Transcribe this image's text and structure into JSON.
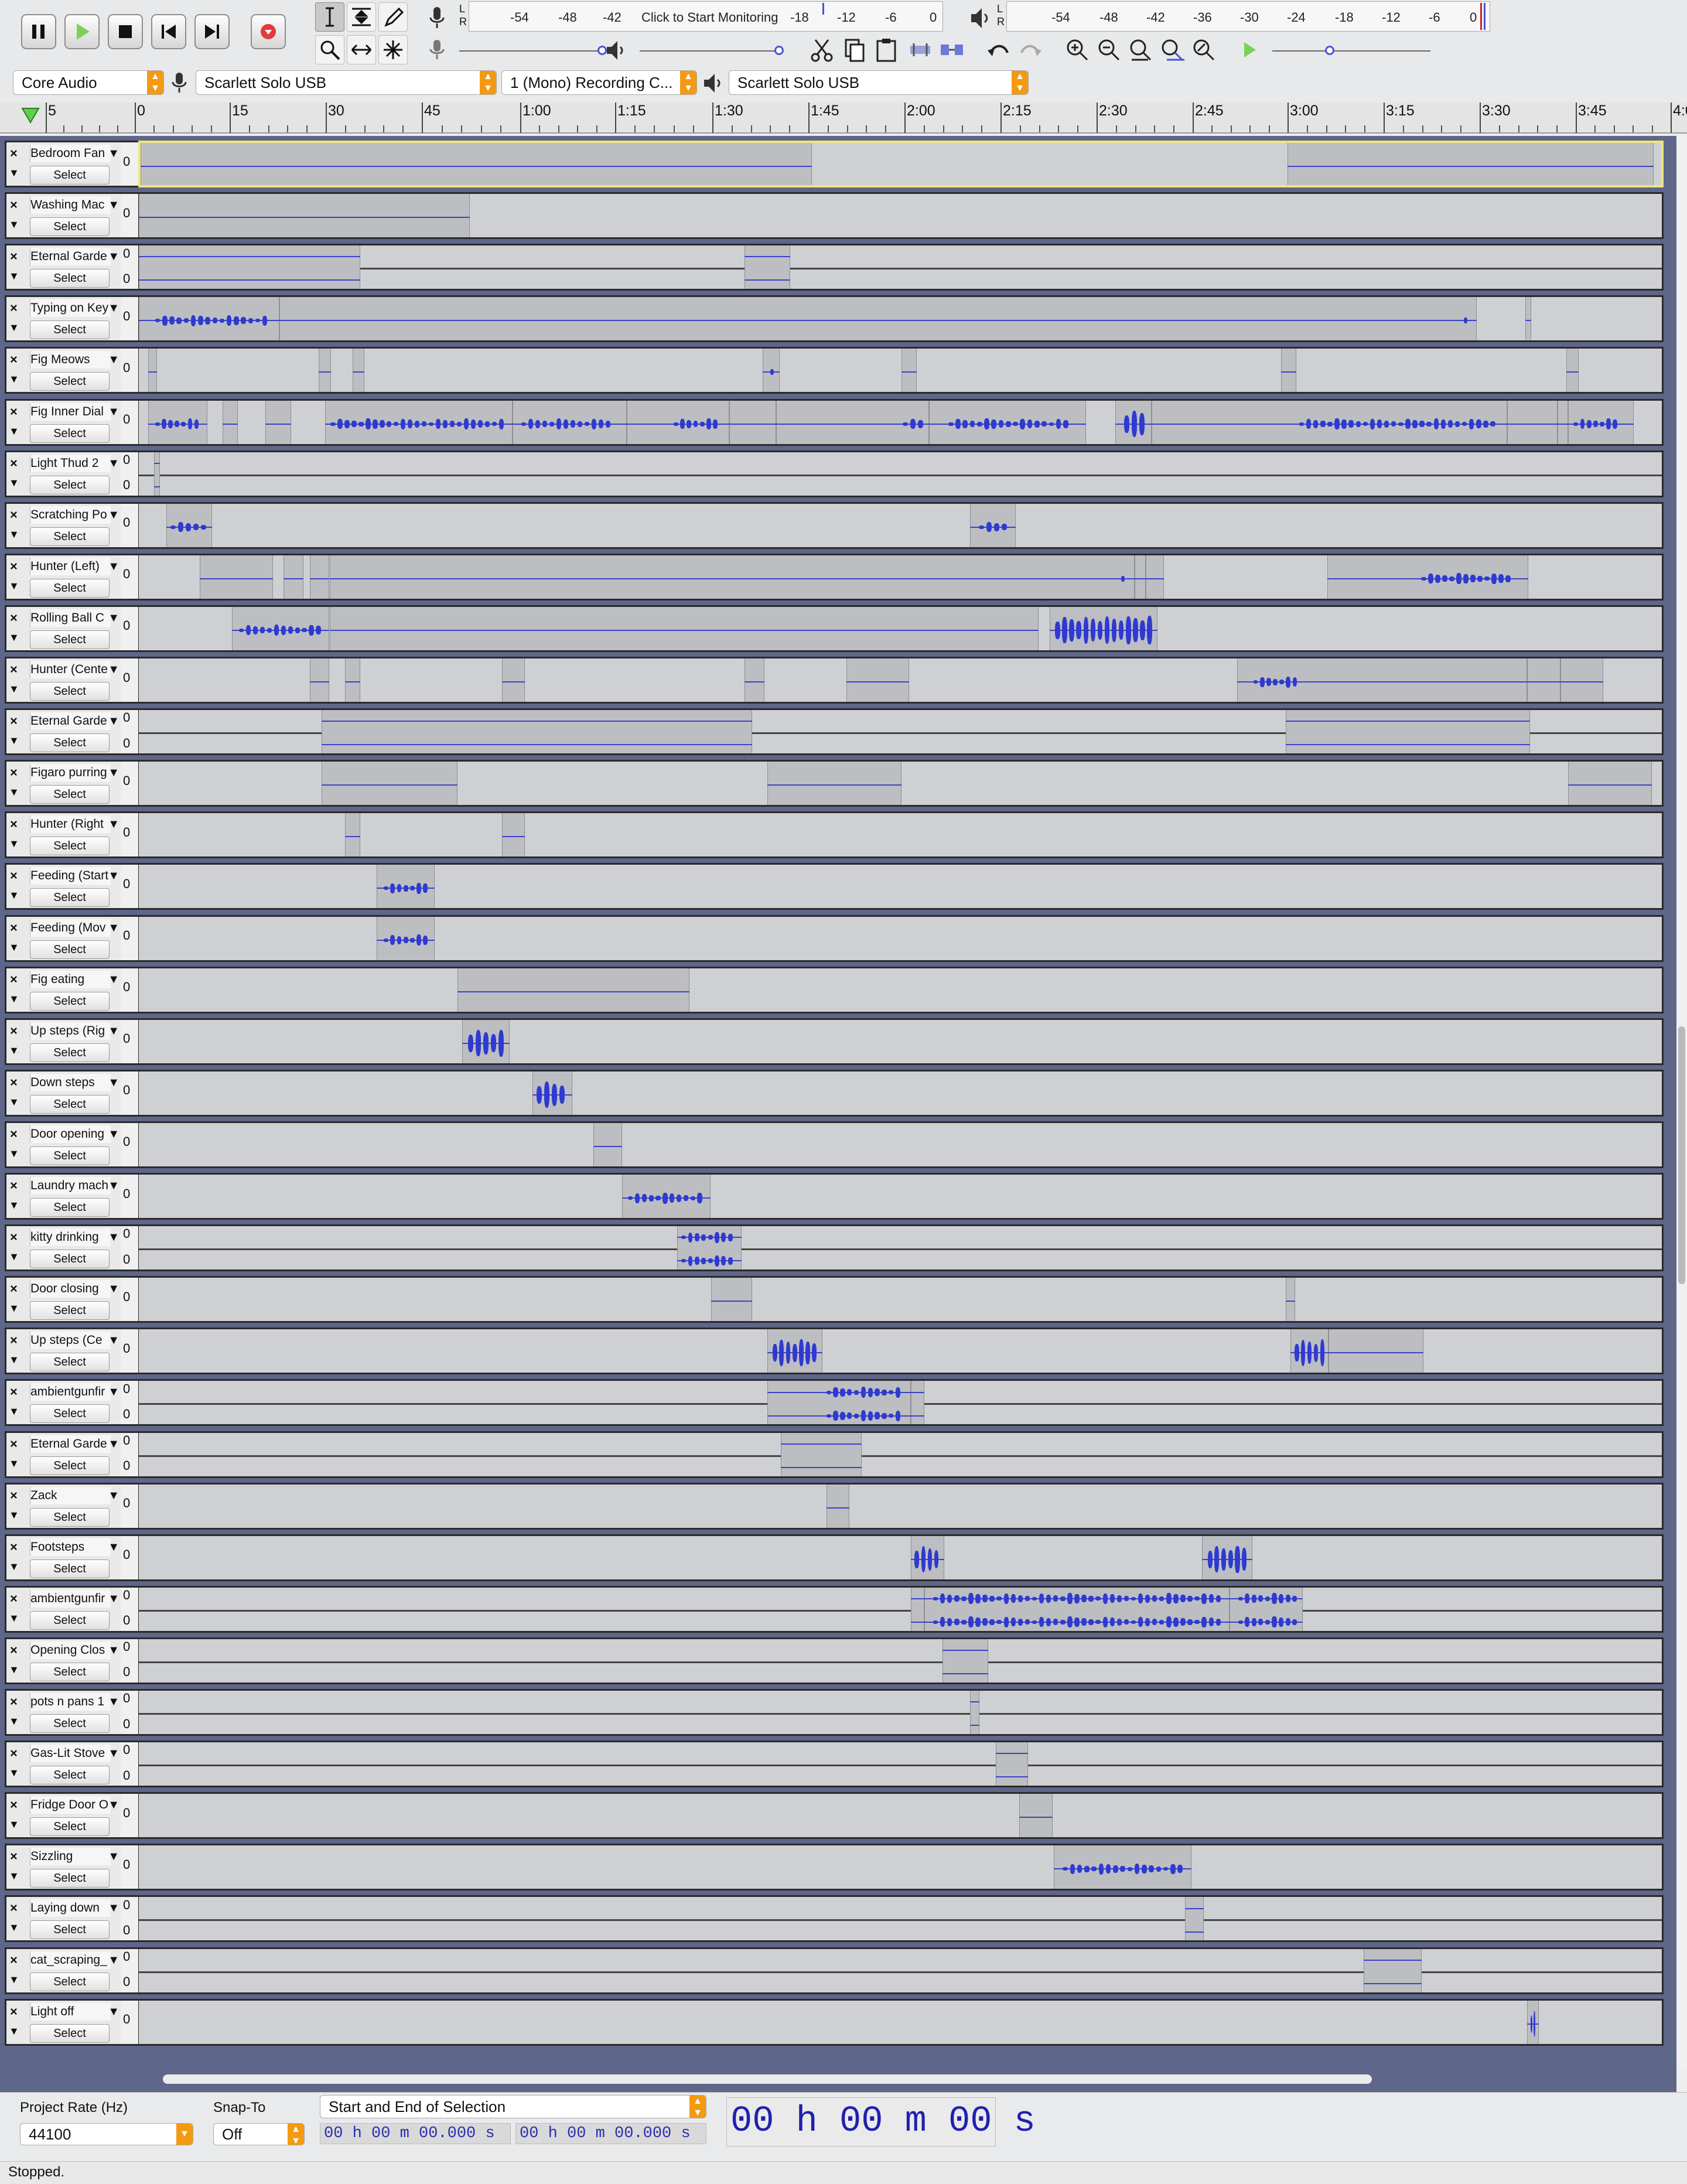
{
  "toolbar": {
    "rec_meter_ticks": [
      "-54",
      "-48",
      "-42",
      "-18",
      "-12",
      "-6",
      "0"
    ],
    "rec_monitor_text": "Click to Start Monitoring",
    "play_meter_ticks": [
      "-54",
      "-48",
      "-42",
      "-36",
      "-30",
      "-24",
      "-18",
      "-12",
      "-6",
      "0"
    ],
    "host": "Core Audio",
    "rec_device": "Scarlett Solo USB",
    "rec_channels": "1 (Mono) Recording C...",
    "play_device": "Scarlett Solo USB",
    "lr": "L R"
  },
  "timeline": {
    "ticks": [
      "5",
      "0",
      "15",
      "30",
      "45",
      "1:00",
      "1:15",
      "1:30",
      "1:45",
      "2:00",
      "2:15",
      "2:30",
      "2:45",
      "3:00",
      "3:15",
      "3:30",
      "3:45",
      "4:00"
    ]
  },
  "tracks": [
    {
      "name": "Bedroom Fan",
      "stereo": false,
      "selected": true,
      "clips": [
        [
          0,
          0.44,
          [
            [
              0.01,
              0.43,
              "line"
            ]
          ]
        ],
        [
          0.752,
          0.992,
          [
            [
              0.77,
              0.98,
              "line"
            ]
          ]
        ]
      ]
    },
    {
      "name": "Washing Mac",
      "stereo": false,
      "clips": [
        [
          0,
          0.217,
          [
            [
              0.01,
              0.21,
              "line"
            ]
          ]
        ]
      ]
    },
    {
      "name": "Eternal Garde",
      "stereo": true,
      "clips": [
        [
          0,
          0.145,
          []
        ],
        [
          0.397,
          0.427,
          []
        ]
      ]
    },
    {
      "name": "Typing on Key",
      "stereo": false,
      "clips": [
        [
          0,
          0.092,
          [
            [
              0.01,
              0.085,
              "dense"
            ]
          ]
        ],
        [
          0.092,
          0.877,
          [
            [
              0.88,
              0.86,
              "dot"
            ]
          ]
        ],
        [
          0.909,
          0.913,
          []
        ]
      ]
    },
    {
      "name": "Fig Meows",
      "stereo": false,
      "clips": [
        [
          0.006,
          0.012,
          []
        ],
        [
          0.118,
          0.126,
          []
        ],
        [
          0.14,
          0.148,
          []
        ],
        [
          0.409,
          0.42,
          [
            [
              0.412,
              0.418,
              "dot"
            ]
          ]
        ],
        [
          0.5,
          0.51,
          []
        ],
        [
          0.749,
          0.759,
          []
        ],
        [
          0.936,
          0.944,
          []
        ]
      ]
    },
    {
      "name": "Fig Inner Dial",
      "stereo": false,
      "clips": [
        [
          0.006,
          0.045,
          [
            [
              0.01,
              0.04,
              "dense"
            ]
          ]
        ],
        [
          0.055,
          0.065,
          []
        ],
        [
          0.083,
          0.1,
          []
        ],
        [
          0.122,
          0.245,
          [
            [
              0.125,
              0.24,
              "dense"
            ]
          ]
        ],
        [
          0.245,
          0.32,
          [
            [
              0.25,
              0.31,
              "dense"
            ]
          ]
        ],
        [
          0.32,
          0.387,
          [
            [
              0.35,
              0.38,
              "dense"
            ]
          ]
        ],
        [
          0.387,
          0.418,
          []
        ],
        [
          0.418,
          0.518,
          [
            [
              0.5,
              0.515,
              "dense"
            ]
          ]
        ],
        [
          0.518,
          0.621,
          [
            [
              0.53,
              0.61,
              "dense"
            ]
          ]
        ],
        [
          0.64,
          0.664,
          [
            [
              0.645,
              0.66,
              "big"
            ]
          ]
        ],
        [
          0.664,
          0.897,
          [
            [
              0.76,
              0.89,
              "dense"
            ]
          ]
        ],
        [
          0.897,
          0.93,
          []
        ],
        [
          0.93,
          0.937,
          []
        ],
        [
          0.937,
          0.98,
          [
            [
              0.94,
              0.97,
              "dense"
            ]
          ]
        ]
      ]
    },
    {
      "name": "Light Thud 2",
      "stereo": true,
      "clips": [
        [
          0.01,
          0.014,
          []
        ]
      ]
    },
    {
      "name": "Scratching Po",
      "stereo": false,
      "clips": [
        [
          0.018,
          0.048,
          [
            [
              0.02,
              0.045,
              "dense"
            ]
          ]
        ],
        [
          0.545,
          0.575,
          [
            [
              0.55,
              0.57,
              "dense"
            ]
          ]
        ]
      ]
    },
    {
      "name": "Hunter (Left)",
      "stereo": false,
      "clips": [
        [
          0.04,
          0.088,
          [
            [
              0.045,
              0.085,
              "line"
            ]
          ]
        ],
        [
          0.095,
          0.108,
          []
        ],
        [
          0.112,
          0.125,
          []
        ],
        [
          0.125,
          0.653,
          [
            [
              0.64,
              0.65,
              "dot"
            ]
          ]
        ],
        [
          0.653,
          0.66,
          []
        ],
        [
          0.66,
          0.672,
          []
        ],
        [
          0.779,
          0.911,
          [
            [
              0.84,
              0.9,
              "dense"
            ]
          ]
        ]
      ]
    },
    {
      "name": "Rolling Ball C",
      "stereo": false,
      "clips": [
        [
          0.061,
          0.125,
          [
            [
              0.065,
              0.12,
              "dense"
            ]
          ]
        ],
        [
          0.125,
          0.59,
          []
        ],
        [
          0.597,
          0.668,
          [
            [
              0.6,
              0.665,
              "big"
            ]
          ]
        ]
      ]
    },
    {
      "name": "Hunter (Cente",
      "stereo": false,
      "clips": [
        [
          0.112,
          0.125,
          []
        ],
        [
          0.135,
          0.145,
          []
        ],
        [
          0.238,
          0.253,
          []
        ],
        [
          0.397,
          0.41,
          []
        ],
        [
          0.464,
          0.505,
          [
            [
              0.47,
              0.5,
              "line"
            ]
          ]
        ],
        [
          0.72,
          0.91,
          [
            [
              0.73,
              0.76,
              "dense"
            ]
          ]
        ],
        [
          0.91,
          0.932,
          []
        ],
        [
          0.932,
          0.96,
          []
        ]
      ]
    },
    {
      "name": "Eternal Garde",
      "stereo": true,
      "clips": [
        [
          0.12,
          0.402,
          []
        ],
        [
          0.752,
          0.912,
          []
        ]
      ]
    },
    {
      "name": "Figaro purring",
      "stereo": false,
      "clips": [
        [
          0.12,
          0.209,
          [
            [
              0.125,
              0.2,
              "line"
            ]
          ]
        ],
        [
          0.412,
          0.5,
          [
            [
              0.415,
              0.495,
              "line"
            ]
          ]
        ],
        [
          0.937,
          0.992,
          [
            [
              0.94,
              0.985,
              "line"
            ]
          ]
        ]
      ]
    },
    {
      "name": "Hunter (Right",
      "stereo": false,
      "clips": [
        [
          0.135,
          0.145,
          []
        ],
        [
          0.238,
          0.253,
          []
        ]
      ]
    },
    {
      "name": "Feeding (Start",
      "stereo": false,
      "clips": [
        [
          0.156,
          0.194,
          [
            [
              0.16,
              0.19,
              "dense"
            ]
          ]
        ]
      ]
    },
    {
      "name": "Feeding (Mov",
      "stereo": false,
      "clips": [
        [
          0.156,
          0.194,
          [
            [
              0.16,
              0.19,
              "dense"
            ]
          ]
        ]
      ]
    },
    {
      "name": "Fig eating",
      "stereo": false,
      "clips": [
        [
          0.209,
          0.361,
          [
            [
              0.21,
              0.355,
              "line"
            ]
          ]
        ]
      ]
    },
    {
      "name": "Up steps (Rig",
      "stereo": false,
      "clips": [
        [
          0.212,
          0.243,
          [
            [
              0.215,
              0.24,
              "big"
            ]
          ]
        ]
      ]
    },
    {
      "name": "Down steps",
      "stereo": false,
      "clips": [
        [
          0.258,
          0.284,
          [
            [
              0.26,
              0.28,
              "big"
            ]
          ]
        ]
      ]
    },
    {
      "name": "Door opening",
      "stereo": false,
      "clips": [
        [
          0.298,
          0.317,
          []
        ]
      ]
    },
    {
      "name": "Laundry mach",
      "stereo": false,
      "clips": [
        [
          0.317,
          0.375,
          [
            [
              0.32,
              0.37,
              "dense"
            ]
          ]
        ]
      ]
    },
    {
      "name": "kitty drinking",
      "stereo": true,
      "clips": [
        [
          0.353,
          0.395,
          [
            [
              0.355,
              0.39,
              "dense"
            ]
          ]
        ]
      ]
    },
    {
      "name": "Door closing",
      "stereo": false,
      "clips": [
        [
          0.375,
          0.402,
          []
        ],
        [
          0.752,
          0.758,
          []
        ]
      ]
    },
    {
      "name": "Up steps (Ce",
      "stereo": false,
      "clips": [
        [
          0.412,
          0.448,
          [
            [
              0.415,
              0.445,
              "big"
            ]
          ]
        ],
        [
          0.755,
          0.78,
          [
            [
              0.757,
              0.778,
              "big"
            ]
          ]
        ],
        [
          0.78,
          0.842,
          []
        ]
      ]
    },
    {
      "name": "ambientgunfir",
      "stereo": true,
      "clips": [
        [
          0.412,
          0.506,
          [
            [
              0.45,
              0.5,
              "dense"
            ]
          ]
        ],
        [
          0.506,
          0.515,
          []
        ]
      ]
    },
    {
      "name": "Eternal Garde",
      "stereo": true,
      "clips": [
        [
          0.421,
          0.474,
          []
        ]
      ]
    },
    {
      "name": "Zack",
      "stereo": false,
      "clips": [
        [
          0.451,
          0.466,
          []
        ]
      ]
    },
    {
      "name": "Footsteps",
      "stereo": false,
      "clips": [
        [
          0.506,
          0.528,
          [
            [
              0.508,
              0.525,
              "big"
            ]
          ]
        ],
        [
          0.697,
          0.73,
          [
            [
              0.7,
              0.727,
              "big"
            ]
          ]
        ]
      ]
    },
    {
      "name": "ambientgunfir",
      "stereo": true,
      "clips": [
        [
          0.506,
          0.515,
          []
        ],
        [
          0.515,
          0.715,
          [
            [
              0.52,
              0.71,
              "dense"
            ]
          ]
        ],
        [
          0.715,
          0.763,
          [
            [
              0.72,
              0.76,
              "dense"
            ]
          ]
        ]
      ]
    },
    {
      "name": "Opening Clos",
      "stereo": true,
      "clips": [
        [
          0.527,
          0.557,
          []
        ]
      ]
    },
    {
      "name": "pots n pans 1",
      "stereo": true,
      "clips": [
        [
          0.545,
          0.551,
          []
        ]
      ]
    },
    {
      "name": "Gas-Lit Stove",
      "stereo": true,
      "clips": [
        [
          0.562,
          0.583,
          []
        ]
      ]
    },
    {
      "name": "Fridge Door O",
      "stereo": false,
      "clips": [
        [
          0.577,
          0.599,
          []
        ]
      ]
    },
    {
      "name": "Sizzling",
      "stereo": false,
      "clips": [
        [
          0.6,
          0.69,
          [
            [
              0.605,
              0.685,
              "dense"
            ]
          ]
        ]
      ]
    },
    {
      "name": "Laying down",
      "stereo": true,
      "clips": [
        [
          0.686,
          0.698,
          []
        ]
      ]
    },
    {
      "name": "cat_scraping_",
      "stereo": true,
      "clips": [
        [
          0.803,
          0.841,
          []
        ]
      ]
    },
    {
      "name": "Light off",
      "stereo": false,
      "clips": [
        [
          0.91,
          0.918,
          [
            [
              0.912,
              0.916,
              "big"
            ]
          ]
        ]
      ]
    }
  ],
  "labels": {
    "select": "Select",
    "zero": "0"
  },
  "bottom": {
    "project_rate_label": "Project Rate (Hz)",
    "project_rate": "44100",
    "snap_to_label": "Snap-To",
    "snap_to": "Off",
    "selection_mode": "Start and End of Selection",
    "sel_start": "00 h 00 m 00.000 s",
    "sel_end": "00 h 00 m 00.000 s",
    "audio_position": "00 h 00 m 00 s"
  },
  "status": "Stopped."
}
